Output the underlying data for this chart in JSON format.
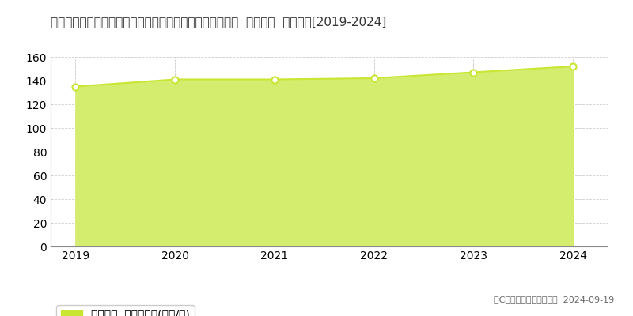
{
  "title": "埼玉県さいたま市中央区大字下落合字大原１０５０番２外  公示地価  地価推移[2019-2024]",
  "years": [
    2019,
    2020,
    2021,
    2022,
    2023,
    2024
  ],
  "values": [
    135,
    141,
    141,
    142,
    147,
    152
  ],
  "ylim": [
    0,
    160
  ],
  "yticks": [
    0,
    20,
    40,
    60,
    80,
    100,
    120,
    140,
    160
  ],
  "line_color": "#c8e632",
  "fill_color": "#d4ed6e",
  "fill_alpha": 1.0,
  "marker_facecolor": "#ffffff",
  "marker_edgecolor": "#c8e632",
  "grid_color": "#aaaaaa",
  "bg_color": "#ffffff",
  "plot_bg_color": "#ffffff",
  "legend_label": "公示地価  平均坪単価(万円/坪)",
  "legend_marker_color": "#c8e632",
  "copyright_text": "（C）土地価格ドットコム  2024-09-19",
  "title_fontsize": 11,
  "tick_fontsize": 10,
  "legend_fontsize": 10,
  "copyright_fontsize": 8,
  "xlim_left": 2018.75,
  "xlim_right": 2024.35
}
